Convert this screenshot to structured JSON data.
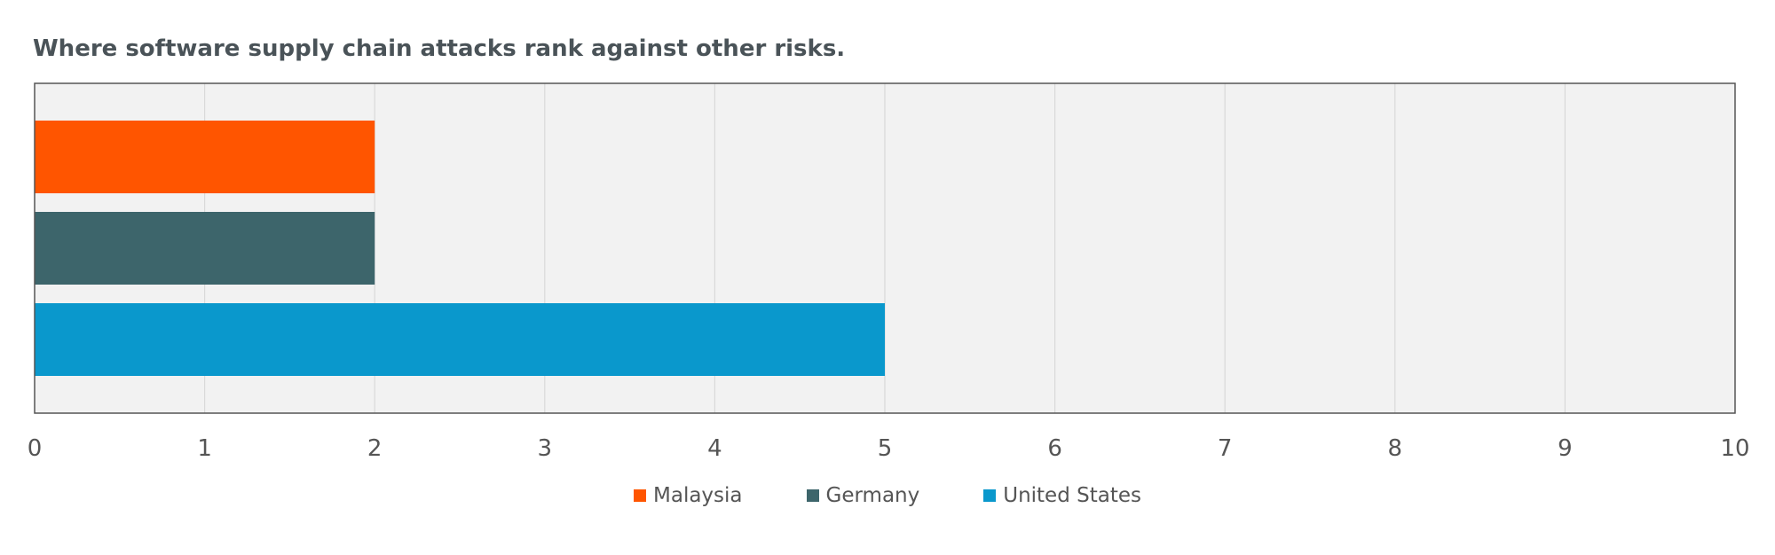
{
  "chart_data": {
    "type": "bar",
    "orientation": "horizontal",
    "title": "Where software supply chain attacks rank against other risks.",
    "xlabel": "",
    "ylabel": "",
    "xlim": [
      0,
      10
    ],
    "ticks": [
      "0",
      "1",
      "2",
      "3",
      "4",
      "5",
      "6",
      "7",
      "8",
      "9",
      "10"
    ],
    "grid": true,
    "legend_position": "bottom-center",
    "background_color": "#f2f2f2",
    "series": [
      {
        "name": "Malaysia",
        "value": 2,
        "color": "#ff5500"
      },
      {
        "name": "Germany",
        "value": 2,
        "color": "#3d656b"
      },
      {
        "name": "United States",
        "value": 5,
        "color": "#0a98cc"
      }
    ]
  }
}
